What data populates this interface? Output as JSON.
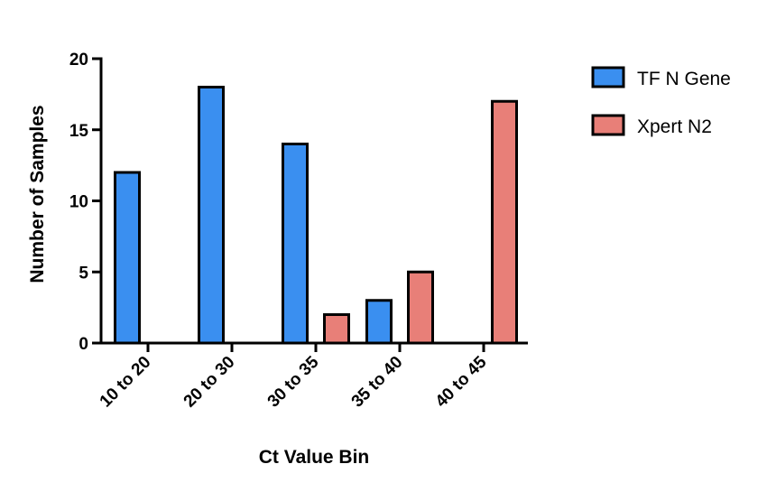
{
  "chart_data": {
    "type": "bar",
    "categories": [
      "10 to 20",
      "20 to 30",
      "30 to 35",
      "35 to 40",
      "40 to 45"
    ],
    "series": [
      {
        "name": "TF N Gene",
        "color": "#3a8ff0",
        "values": [
          12,
          18,
          14,
          3,
          0
        ]
      },
      {
        "name": "Xpert N2",
        "color": "#e87f78",
        "values": [
          0,
          0,
          2,
          5,
          17
        ]
      }
    ],
    "title": "",
    "xlabel": "Ct Value Bin",
    "ylabel": "Number of Samples",
    "ylim": [
      0,
      20
    ],
    "yticks": [
      0,
      5,
      10,
      15,
      20
    ],
    "grid": false,
    "legend_position": "top-right"
  }
}
